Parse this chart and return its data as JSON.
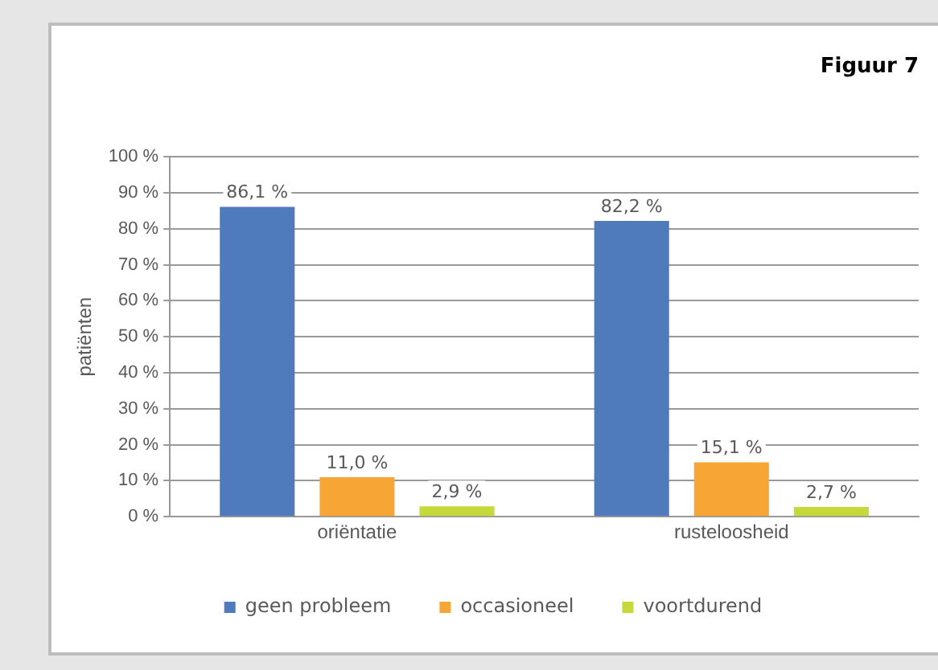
{
  "chart_data": {
    "type": "bar",
    "title": "Figuur 7",
    "ylabel": "patiënten",
    "categories": [
      "oriëntatie",
      "rusteloosheid"
    ],
    "series": [
      {
        "name": "geen probleem",
        "color": "#4f7bbd",
        "values": [
          86.1,
          82.2
        ],
        "value_labels": [
          "86,1 %",
          "82,2 %"
        ]
      },
      {
        "name": "occasioneel",
        "color": "#f7a535",
        "values": [
          11.0,
          15.1
        ],
        "value_labels": [
          "11,0 %",
          "15,1 %"
        ]
      },
      {
        "name": "voortdurend",
        "color": "#c5d93b",
        "values": [
          2.9,
          2.7
        ],
        "value_labels": [
          "2,9 %",
          "2,7 %"
        ]
      }
    ],
    "ylim": [
      0,
      100
    ],
    "yticks": [
      {
        "value": 0,
        "label": "0 %"
      },
      {
        "value": 10,
        "label": "10 %"
      },
      {
        "value": 20,
        "label": "20 %"
      },
      {
        "value": 30,
        "label": "30 %"
      },
      {
        "value": 40,
        "label": "40 %"
      },
      {
        "value": 50,
        "label": "50 %"
      },
      {
        "value": 60,
        "label": "60 %"
      },
      {
        "value": 70,
        "label": "70 %"
      },
      {
        "value": 80,
        "label": "80 %"
      },
      {
        "value": 90,
        "label": "90 %"
      },
      {
        "value": 100,
        "label": "100 %"
      }
    ],
    "grid": "y",
    "legend": "bottom"
  }
}
